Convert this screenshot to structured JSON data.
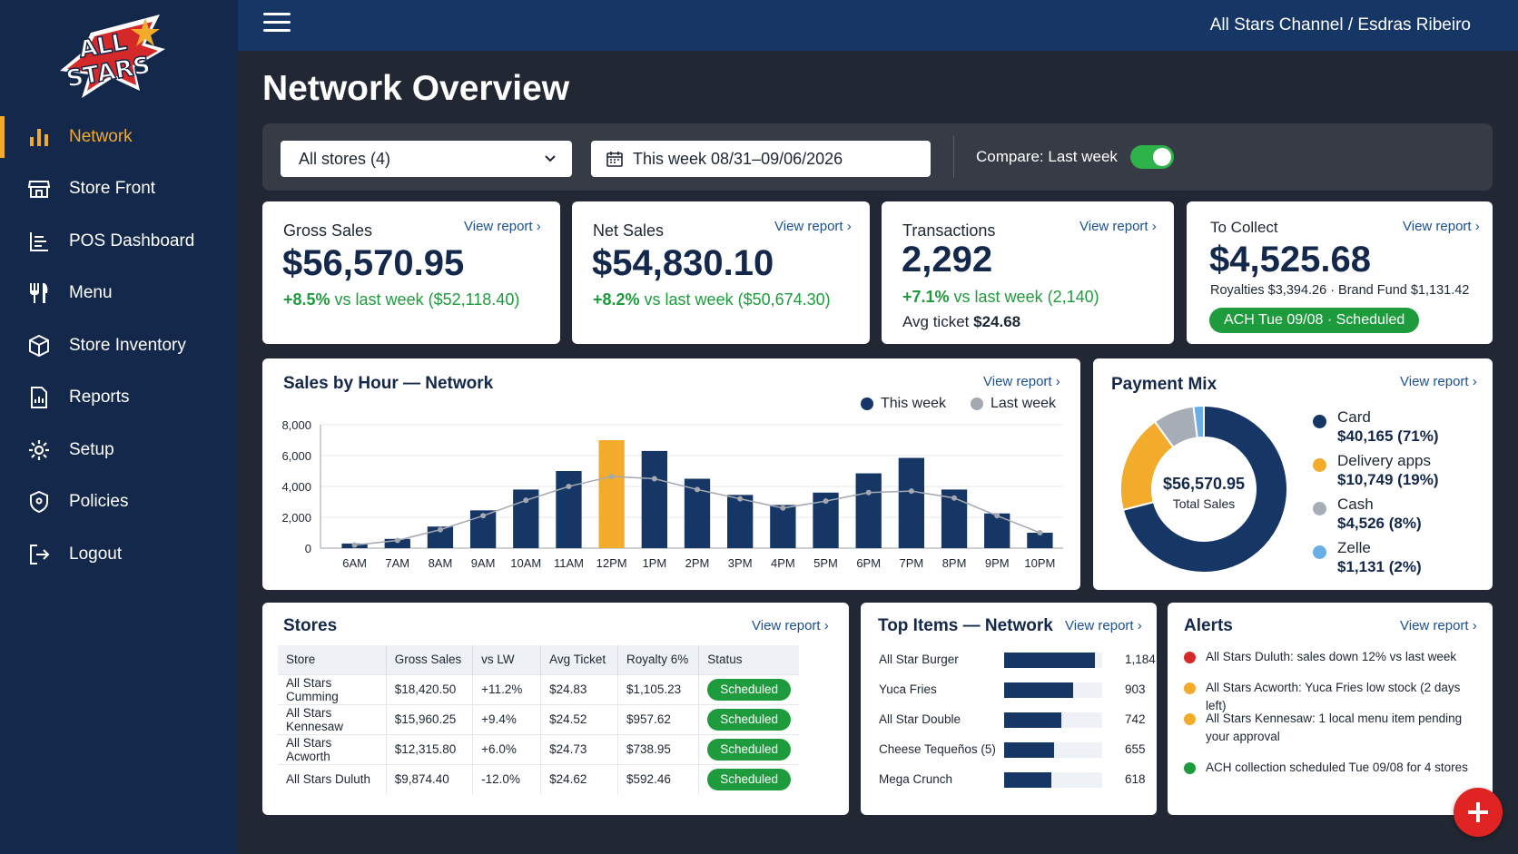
{
  "app": {
    "logo_text_line1": "ALL",
    "logo_text_line2": "STARS"
  },
  "sidebar": {
    "items": [
      {
        "label": "Network",
        "icon": "bar-chart-icon",
        "active": true
      },
      {
        "label": "Store Front",
        "icon": "storefront-icon"
      },
      {
        "label": "POS Dashboard",
        "icon": "list-icon"
      },
      {
        "label": "Menu",
        "icon": "utensils-icon"
      },
      {
        "label": "Store Inventory",
        "icon": "box-icon"
      },
      {
        "label": "Reports",
        "icon": "report-icon"
      },
      {
        "label": "Setup",
        "icon": "gear-icon"
      },
      {
        "label": "Policies",
        "icon": "shield-icon"
      },
      {
        "label": "Logout",
        "icon": "logout-icon"
      }
    ]
  },
  "header": {
    "account": "All Stars Channel / Esdras Ribeiro"
  },
  "page": {
    "title": "Network Overview"
  },
  "filters": {
    "store_select": "All stores (4)",
    "date_range": "This week 08/31–09/06/2026",
    "compare_label": "Compare: Last week",
    "compare_on": true
  },
  "view_report": "View report ›",
  "kpis": {
    "gross": {
      "label": "Gross Sales",
      "value": "$56,570.95",
      "delta": "+8.5%",
      "delta_rest": " vs last week ($52,118.40)"
    },
    "net": {
      "label": "Net Sales",
      "value": "$54,830.10",
      "delta": "+8.2%",
      "delta_rest": " vs last week ($50,674.30)"
    },
    "transactions": {
      "label": "Transactions",
      "value": "2,292",
      "delta": "+7.1%",
      "delta_rest": " vs last week (2,140)",
      "sub_label": "Avg ticket ",
      "sub_value": "$24.68"
    },
    "collect": {
      "label": "To Collect",
      "value": "$4,525.68",
      "breakdown": "Royalties $3,394.26 · Brand Fund $1,131.42",
      "badge": "ACH Tue 09/08 · Scheduled"
    }
  },
  "sales_by_hour": {
    "title": "Sales by Hour — Network",
    "legend_this": "This week",
    "legend_last": "Last week"
  },
  "chart_data": [
    {
      "type": "bar",
      "title": "Sales by Hour — Network",
      "categories": [
        "6AM",
        "7AM",
        "8AM",
        "9AM",
        "10AM",
        "11AM",
        "12PM",
        "1PM",
        "2PM",
        "3PM",
        "4PM",
        "5PM",
        "6PM",
        "7PM",
        "8PM",
        "9PM",
        "10PM"
      ],
      "series": [
        {
          "name": "This week",
          "type": "bar",
          "values": [
            300,
            600,
            1400,
            2450,
            3800,
            5000,
            7000,
            6300,
            4500,
            3450,
            2800,
            3600,
            4850,
            5850,
            3800,
            2250,
            1000
          ]
        },
        {
          "name": "Last week",
          "type": "line",
          "values": [
            200,
            500,
            1200,
            2100,
            3100,
            4000,
            4650,
            4500,
            3800,
            3200,
            2600,
            3050,
            3600,
            3700,
            3250,
            2100,
            1000
          ]
        }
      ],
      "y_ticks": [
        "0",
        "2,000",
        "4,000",
        "6,000",
        "8,000"
      ],
      "ylim": [
        0,
        8000
      ],
      "highlight_category": "12PM",
      "colors": {
        "this_week": "#163666",
        "last_week": "#a3a8b1",
        "highlight": "#f2ab2b"
      },
      "grid": true,
      "legend": "top-right"
    },
    {
      "type": "pie",
      "title": "Payment Mix",
      "center_value": "$56,570.95",
      "center_label": "Total Sales",
      "slices": [
        {
          "label": "Card",
          "value": 40165,
          "display": "$40,165 (71%)",
          "percent": 71,
          "color": "#163666"
        },
        {
          "label": "Delivery apps",
          "value": 10749,
          "display": "$10,749 (19%)",
          "percent": 19,
          "color": "#f2ab2b"
        },
        {
          "label": "Cash",
          "value": 4526,
          "display": "$4,526 (8%)",
          "percent": 8,
          "color": "#a7adb6"
        },
        {
          "label": "Zelle",
          "value": 1131,
          "display": "$1,131 (2%)",
          "percent": 2,
          "color": "#6aaee8"
        }
      ],
      "legend": "right"
    },
    {
      "type": "bar",
      "title": "Top Items — Network",
      "categories": [
        "All Star Burger",
        "Yuca Fries",
        "All Star Double",
        "Cheese Tequeños (5)",
        "Mega Crunch"
      ],
      "values": [
        1184,
        903,
        742,
        655,
        618
      ],
      "orientation": "horizontal",
      "xlim": [
        0,
        1280
      ]
    }
  ],
  "stores": {
    "title": "Stores",
    "columns": [
      "Store",
      "Gross Sales",
      "vs LW",
      "Avg Ticket",
      "Royalty 6%",
      "Status"
    ],
    "rows": [
      {
        "store": "All Stars Cumming",
        "gross": "$18,420.50",
        "vslw": "+11.2%",
        "trend": "up",
        "avg": "$24.83",
        "royalty": "$1,105.23",
        "status": "Scheduled"
      },
      {
        "store": "All Stars Kennesaw",
        "gross": "$15,960.25",
        "vslw": "+9.4%",
        "trend": "up",
        "avg": "$24.52",
        "royalty": "$957.62",
        "status": "Scheduled"
      },
      {
        "store": "All Stars Acworth",
        "gross": "$12,315.80",
        "vslw": "+6.0%",
        "trend": "up",
        "avg": "$24.73",
        "royalty": "$738.95",
        "status": "Scheduled"
      },
      {
        "store": "All Stars Duluth",
        "gross": "$9,874.40",
        "vslw": "-12.0%",
        "trend": "down",
        "avg": "$24.62",
        "royalty": "$592.46",
        "status": "Scheduled"
      }
    ]
  },
  "top_items": {
    "title": "Top Items — Network",
    "items": [
      {
        "name": "All Star Burger",
        "count": "1,184",
        "value": 1184
      },
      {
        "name": "Yuca Fries",
        "count": "903",
        "value": 903
      },
      {
        "name": "All Star Double",
        "count": "742",
        "value": 742
      },
      {
        "name": "Cheese Tequeños (5)",
        "count": "655",
        "value": 655
      },
      {
        "name": "Mega Crunch",
        "count": "618",
        "value": 618
      }
    ]
  },
  "alerts": {
    "title": "Alerts",
    "items": [
      {
        "text": "All Stars Duluth: sales down 12% vs last week",
        "color": "#d52828"
      },
      {
        "text": "All Stars Acworth: Yuca Fries low stock (2 days left)",
        "color": "#f2ab2b"
      },
      {
        "text": "All Stars Kennesaw: 1 local menu item pending your approval",
        "color": "#f2ab2b"
      },
      {
        "text": "ACH collection scheduled Tue 09/08 for 4 stores",
        "color": "#1e9b3d"
      }
    ]
  }
}
